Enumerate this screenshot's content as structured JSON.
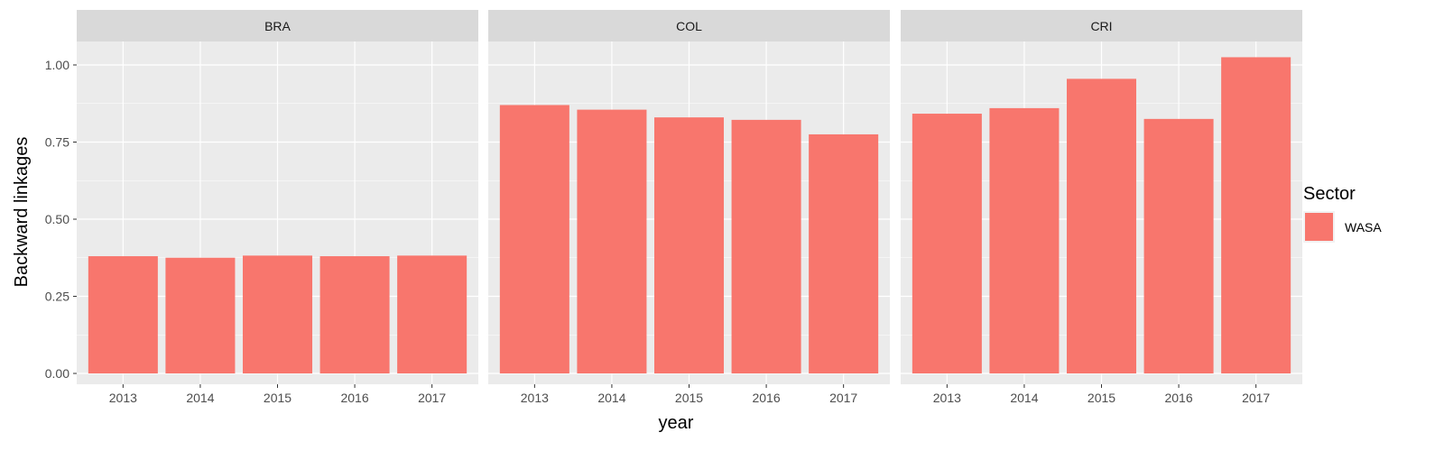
{
  "chart_data": {
    "type": "bar",
    "ylabel": "Backward linkages",
    "xlabel": "year",
    "ylim": [
      0,
      1.075
    ],
    "yticks": [
      0,
      0.25,
      0.5,
      0.75,
      1.0
    ],
    "ytick_labels": [
      "0.00",
      "0.25",
      "0.50",
      "0.75",
      "1.00"
    ],
    "categories": [
      "2013",
      "2014",
      "2015",
      "2016",
      "2017"
    ],
    "legend": {
      "title": "Sector",
      "position": "right",
      "entries": [
        {
          "label": "WASA",
          "color": "#F8766D"
        }
      ]
    },
    "panels": [
      {
        "label": "BRA",
        "values": [
          0.38,
          0.375,
          0.382,
          0.38,
          0.382
        ]
      },
      {
        "label": "COL",
        "values": [
          0.87,
          0.855,
          0.83,
          0.822,
          0.775
        ]
      },
      {
        "label": "CRI",
        "values": [
          0.842,
          0.86,
          0.955,
          0.825,
          1.025
        ]
      }
    ],
    "grid": true
  },
  "colors": {
    "bar": "#F8766D",
    "panel_bg": "#EBEBEB",
    "strip_bg": "#D9D9D9",
    "grid_major": "#FFFFFF"
  }
}
